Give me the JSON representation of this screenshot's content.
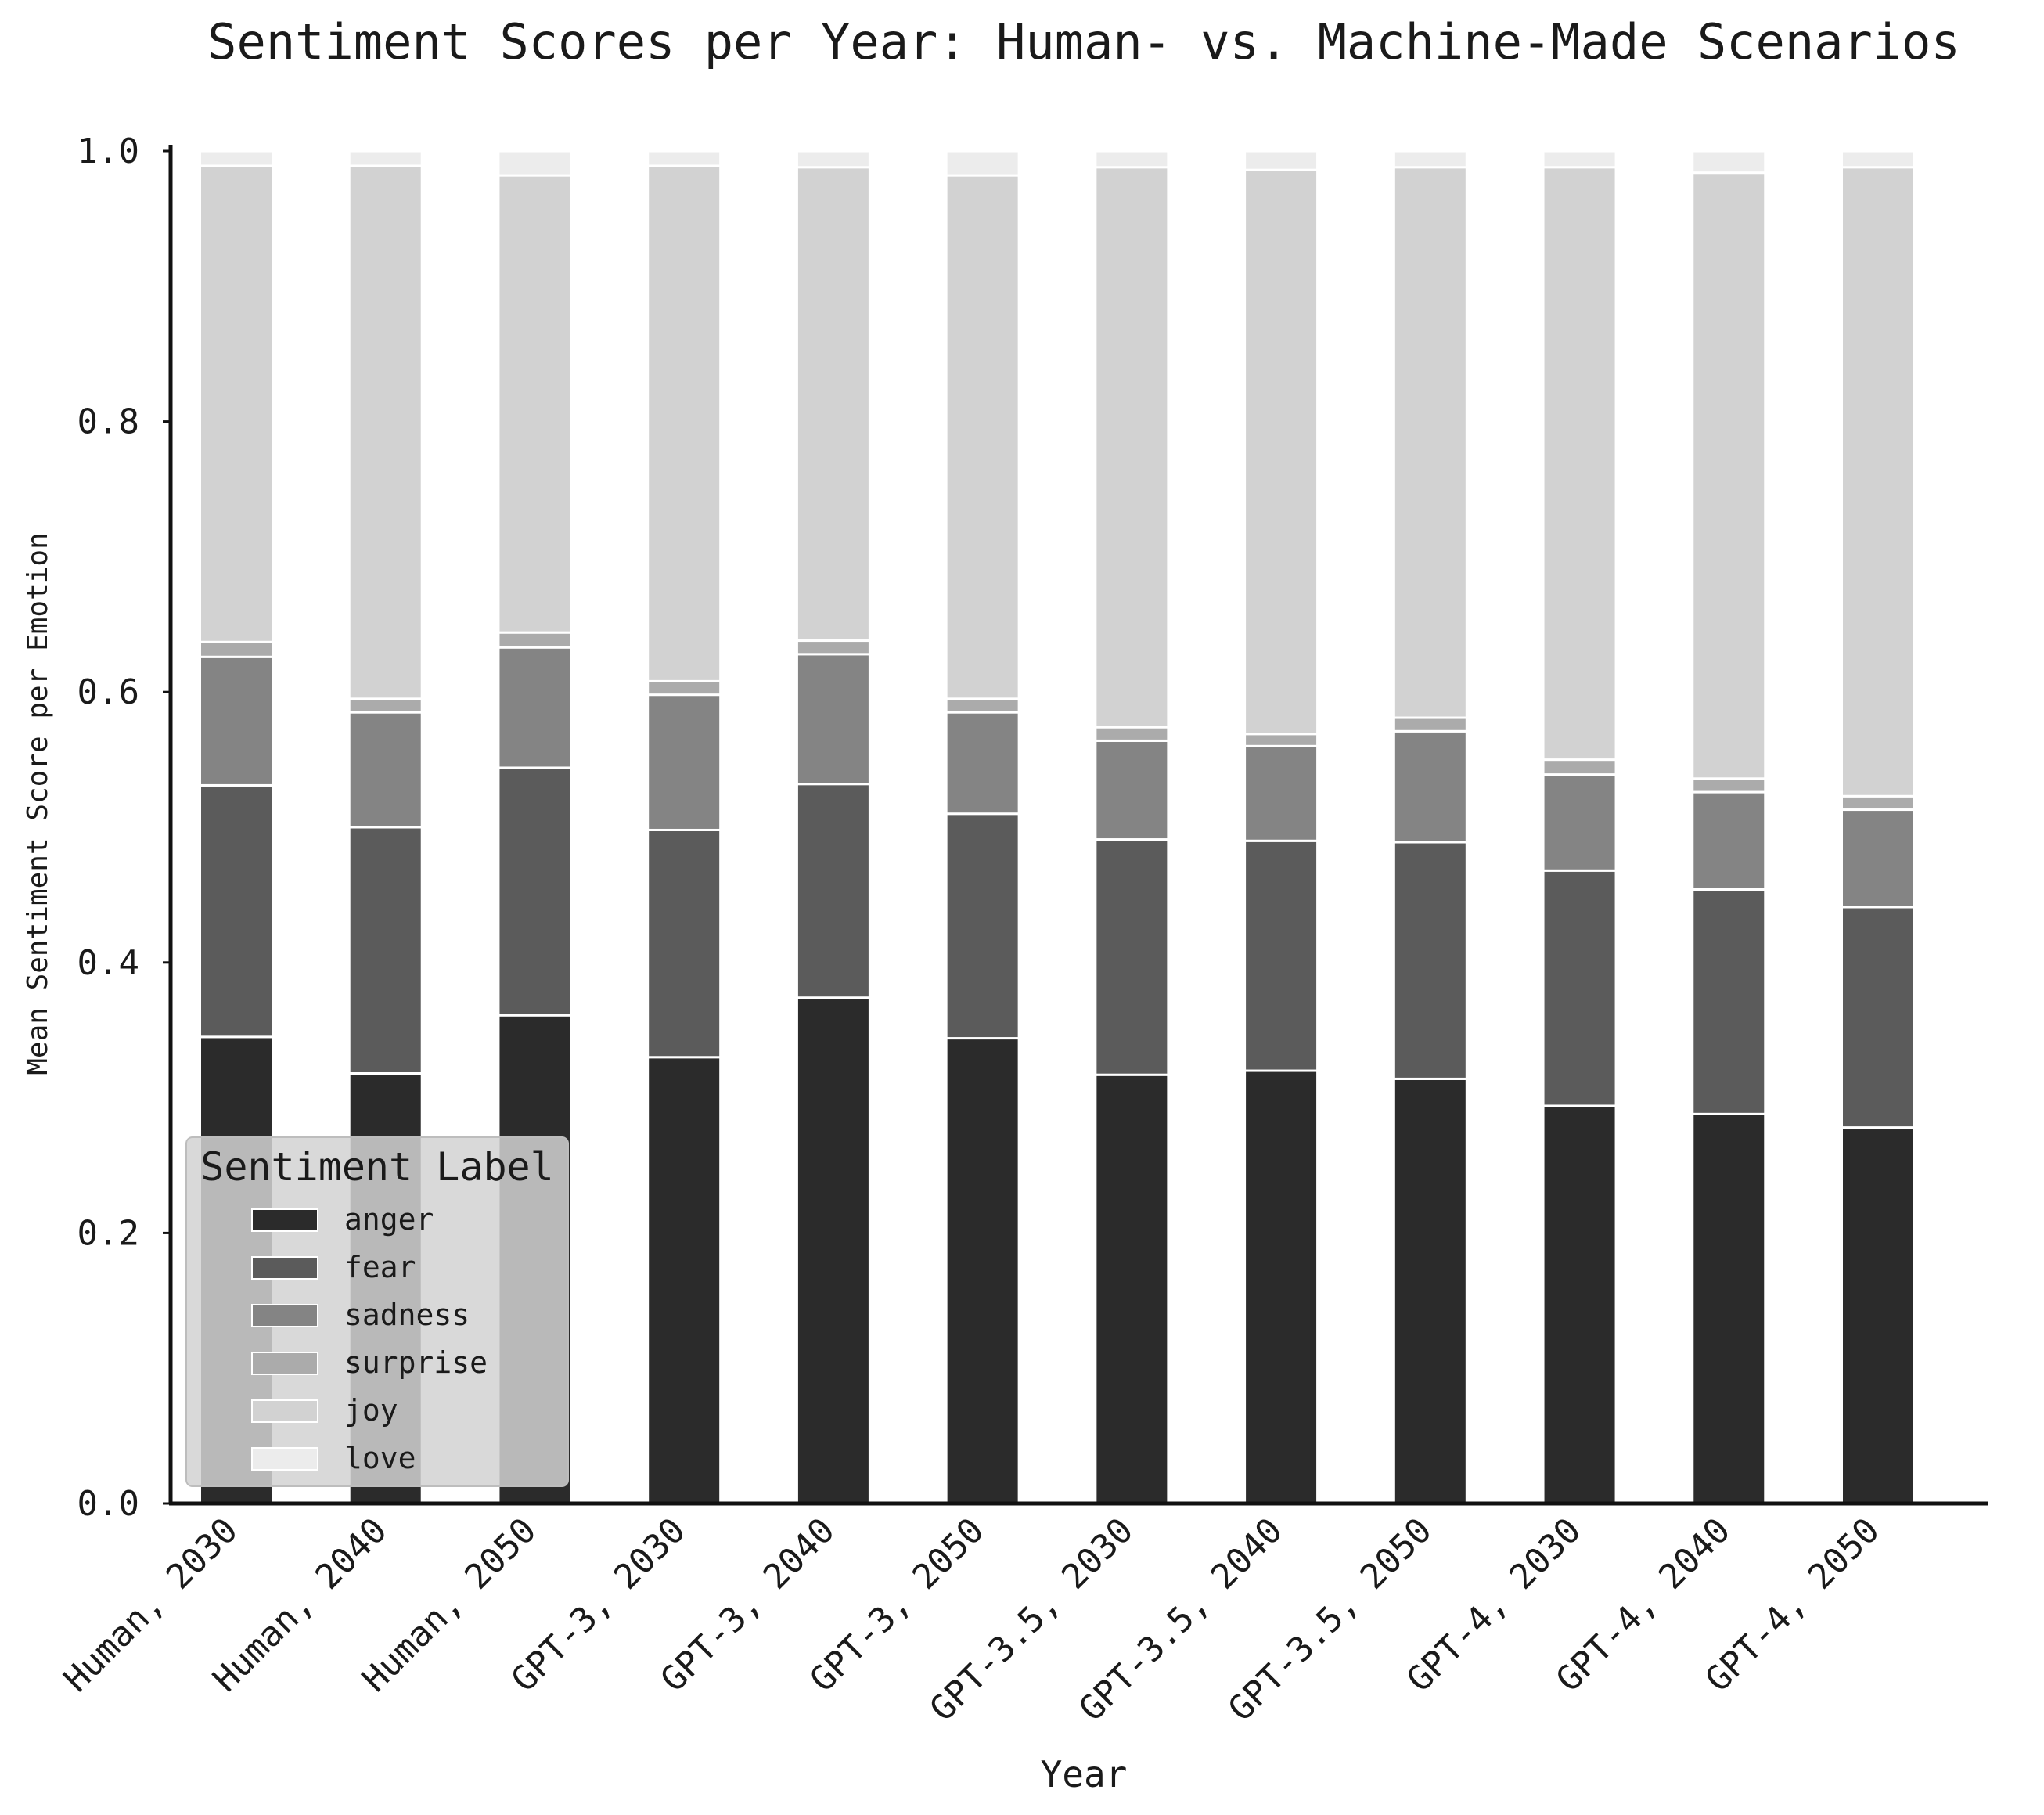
{
  "chart_data": {
    "type": "bar",
    "stacked": true,
    "title": "Sentiment Scores per Year: Human- vs. Machine-Made Scenarios",
    "xlabel": "Year",
    "ylabel": "Mean Sentiment Score per Emotion",
    "ylim": [
      0,
      1.0
    ],
    "yticks": [
      "0.0",
      "0.2",
      "0.4",
      "0.6",
      "0.8",
      "1.0"
    ],
    "grid": false,
    "legend_title": "Sentiment Label",
    "legend_position": "lower-left",
    "categories": [
      "Human, 2030",
      "Human, 2040",
      "Human, 2050",
      "GPT-3, 2030",
      "GPT-3, 2040",
      "GPT-3, 2050",
      "GPT-3.5, 2030",
      "GPT-3.5, 2040",
      "GPT-3.5, 2050",
      "GPT-4, 2030",
      "GPT-4, 2040",
      "GPT-4, 2050"
    ],
    "series": [
      {
        "name": "anger",
        "color": "#2b2b2b",
        "values": [
          0.345,
          0.318,
          0.361,
          0.33,
          0.374,
          0.344,
          0.317,
          0.32,
          0.314,
          0.294,
          0.288,
          0.278
        ]
      },
      {
        "name": "fear",
        "color": "#5b5b5b",
        "values": [
          0.186,
          0.182,
          0.183,
          0.168,
          0.158,
          0.166,
          0.174,
          0.17,
          0.175,
          0.174,
          0.166,
          0.163
        ]
      },
      {
        "name": "sadness",
        "color": "#848484",
        "values": [
          0.095,
          0.085,
          0.089,
          0.1,
          0.096,
          0.075,
          0.073,
          0.07,
          0.082,
          0.071,
          0.072,
          0.072
        ]
      },
      {
        "name": "surprise",
        "color": "#ababab",
        "values": [
          0.011,
          0.01,
          0.011,
          0.01,
          0.01,
          0.01,
          0.01,
          0.009,
          0.01,
          0.011,
          0.01,
          0.01
        ]
      },
      {
        "name": "joy",
        "color": "#d2d2d2",
        "values": [
          0.352,
          0.394,
          0.338,
          0.381,
          0.35,
          0.387,
          0.414,
          0.417,
          0.407,
          0.438,
          0.448,
          0.465
        ]
      },
      {
        "name": "love",
        "color": "#ececec",
        "values": [
          0.011,
          0.011,
          0.018,
          0.011,
          0.012,
          0.018,
          0.012,
          0.014,
          0.012,
          0.012,
          0.016,
          0.012
        ]
      }
    ]
  }
}
